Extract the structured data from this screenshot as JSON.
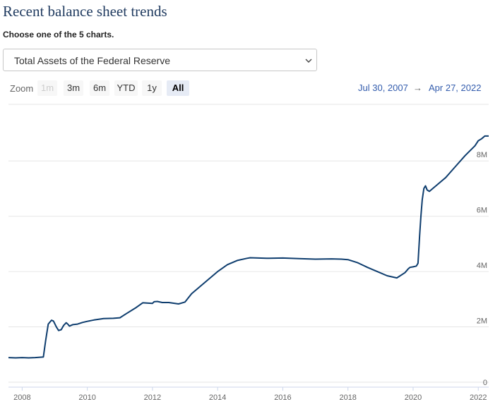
{
  "page": {
    "title": "Recent balance sheet trends",
    "subtitle": "Choose one of the 5 charts.",
    "select": {
      "value": "Total Assets of the Federal Reserve",
      "icon": "chevron-down-icon"
    }
  },
  "zoom": {
    "label": "Zoom",
    "buttons": [
      {
        "label": "1m",
        "state": "disabled"
      },
      {
        "label": "3m",
        "state": "normal"
      },
      {
        "label": "6m",
        "state": "normal"
      },
      {
        "label": "YTD",
        "state": "normal"
      },
      {
        "label": "1y",
        "state": "normal"
      },
      {
        "label": "All",
        "state": "selected"
      }
    ]
  },
  "range": {
    "from": "Jul 30, 2007",
    "arrow": "→",
    "to": "Apr 27, 2022"
  },
  "colors": {
    "line": "#0e3d6e",
    "grid": "#e6e6e6",
    "accent": "#335cad"
  },
  "chart_data": {
    "type": "line",
    "x_unit": "year",
    "y_unit": "millions of dollars",
    "xlim": [
      2007.58,
      2022.32
    ],
    "ylim": [
      0,
      9000000
    ],
    "x_ticks": [
      2008,
      2010,
      2012,
      2014,
      2016,
      2018,
      2020,
      2022
    ],
    "x_tick_labels": [
      "2008",
      "2010",
      "2012",
      "2014",
      "2016",
      "2018",
      "2020",
      "2022"
    ],
    "y_ticks": [
      0,
      2000000,
      4000000,
      6000000,
      8000000
    ],
    "y_tick_labels": [
      "0",
      "2M",
      "4M",
      "6M",
      "8M"
    ],
    "grid": true,
    "series": [
      {
        "x": [
          2007.58,
          2007.8,
          2008.0,
          2008.2,
          2008.4,
          2008.65,
          2008.72,
          2008.8,
          2008.9,
          2008.96,
          2009.05,
          2009.12,
          2009.2,
          2009.27,
          2009.35,
          2009.4,
          2009.45,
          2009.55,
          2009.7,
          2009.85,
          2010.0,
          2010.2,
          2010.5,
          2010.8,
          2011.0,
          2011.2,
          2011.5,
          2011.7,
          2012.0,
          2012.05,
          2012.15,
          2012.3,
          2012.5,
          2012.8,
          2013.0,
          2013.2,
          2013.5,
          2013.8,
          2014.0,
          2014.3,
          2014.6,
          2014.9,
          2015.0,
          2015.5,
          2016.0,
          2016.5,
          2017.0,
          2017.5,
          2017.8,
          2018.0,
          2018.3,
          2018.6,
          2018.9,
          2019.2,
          2019.5,
          2019.75,
          2019.85,
          2019.9,
          2020.0,
          2020.1,
          2020.15,
          2020.2,
          2020.24,
          2020.28,
          2020.33,
          2020.38,
          2020.43,
          2020.5,
          2020.7,
          2021.0,
          2021.3,
          2021.6,
          2021.9,
          2022.0,
          2022.1,
          2022.2,
          2022.32
        ],
        "y": [
          890000,
          880000,
          890000,
          880000,
          890000,
          910000,
          1500000,
          2100000,
          2240000,
          2210000,
          2000000,
          1870000,
          1900000,
          2050000,
          2150000,
          2100000,
          2030000,
          2080000,
          2100000,
          2160000,
          2200000,
          2250000,
          2300000,
          2310000,
          2330000,
          2480000,
          2700000,
          2870000,
          2850000,
          2910000,
          2920000,
          2880000,
          2880000,
          2830000,
          2900000,
          3200000,
          3500000,
          3800000,
          4000000,
          4250000,
          4400000,
          4480000,
          4500000,
          4480000,
          4490000,
          4470000,
          4450000,
          4460000,
          4450000,
          4430000,
          4320000,
          4150000,
          4000000,
          3850000,
          3770000,
          3960000,
          4100000,
          4150000,
          4170000,
          4200000,
          4300000,
          5300000,
          6000000,
          6600000,
          7000000,
          7100000,
          6950000,
          6900000,
          7100000,
          7400000,
          7800000,
          8200000,
          8550000,
          8730000,
          8800000,
          8900000,
          8900000
        ]
      }
    ]
  }
}
